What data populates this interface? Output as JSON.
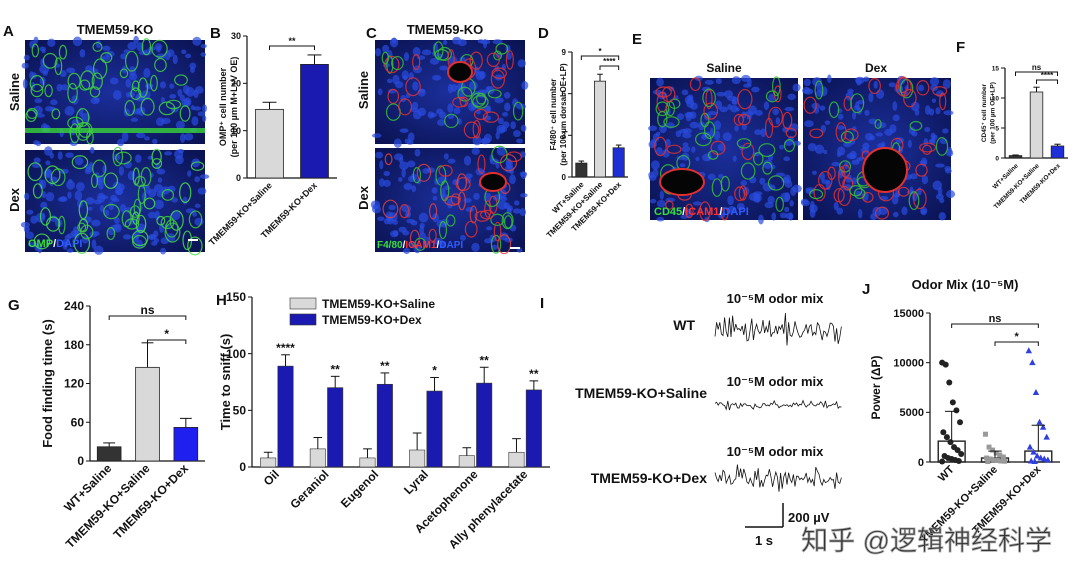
{
  "panels": [
    "A",
    "B",
    "C",
    "D",
    "E",
    "F",
    "G",
    "H",
    "I",
    "J"
  ],
  "panel_a": {
    "title": "TMEM59-KO",
    "rows": [
      "Saline",
      "Dex"
    ],
    "stain": [
      "OMP",
      "/",
      "DAPI"
    ]
  },
  "panel_c": {
    "title": "TMEM59-KO",
    "rows": [
      "Saline",
      "Dex"
    ],
    "stain": [
      "F4/80",
      "/",
      "ICAM1",
      "/",
      "DAPI"
    ]
  },
  "panel_e": {
    "columns": [
      "Saline",
      "Dex"
    ],
    "stain": [
      "CD45",
      "/",
      "ICAM1",
      "/",
      "DAPI"
    ]
  },
  "panel_i": {
    "rows": [
      {
        "label": "WT",
        "stimulus": "10⁻⁵M odor mix"
      },
      {
        "label": "TMEM59-KO+Saline",
        "stimulus": "10⁻⁵M odor mix"
      },
      {
        "label": "TMEM59-KO+Dex",
        "stimulus": "10⁻⁵M odor mix"
      }
    ],
    "scale": [
      "200 µV",
      "1 s"
    ]
  },
  "watermark": "知乎 @逻辑神经科学",
  "chart_data": [
    {
      "type": "bar",
      "ylabel": [
        "OMP⁺ cell number",
        "(per 100 µm M+L+V OE)"
      ],
      "categories": [
        "TMEM59-KO+Saline",
        "TMEM59-KO+Dex"
      ],
      "values": [
        14.5,
        24
      ],
      "errors": [
        1.5,
        2
      ],
      "colors": [
        "#d9d9d9",
        "#1a1ab0"
      ],
      "ylim": [
        0,
        30
      ],
      "yticks": [
        0,
        10,
        20,
        30
      ],
      "significance": [
        "**"
      ]
    },
    {
      "type": "bar",
      "ylabel": [
        "F4/80⁺ cell number",
        "(per 100 µm dorsal OE+LP)"
      ],
      "categories": [
        "WT+Saline",
        "TMEM59-KO+Saline",
        "TMEM59-KO+Dex"
      ],
      "values": [
        1.0,
        6.9,
        2.1
      ],
      "errors": [
        0.15,
        0.5,
        0.2
      ],
      "colors": [
        "#333333",
        "#d9d9d9",
        "#1f2fd8"
      ],
      "ylim": [
        0,
        9
      ],
      "yticks": [
        0,
        3,
        6,
        9
      ],
      "significance": [
        "*",
        "****"
      ]
    },
    {
      "type": "bar",
      "ylabel": [
        "CD45⁺ cell number",
        "(per 100 µm OE+LP)"
      ],
      "categories": [
        "WT+Saline",
        "TMEM59-KO+Saline",
        "TMEM59-KO+Dex"
      ],
      "values": [
        0.4,
        11,
        2
      ],
      "errors": [
        0.1,
        0.8,
        0.3
      ],
      "colors": [
        "#333333",
        "#d9d9d9",
        "#1f2fd8"
      ],
      "ylim": [
        0,
        15
      ],
      "yticks": [
        0,
        5,
        10,
        15
      ],
      "significance": [
        "ns",
        "****"
      ]
    },
    {
      "type": "bar",
      "ylabel": [
        "Food finding time (s)"
      ],
      "categories": [
        "WT+Saline",
        "TMEM59-KO+Saline",
        "TMEM59-KO+Dex"
      ],
      "values": [
        22,
        145,
        52
      ],
      "errors": [
        6,
        38,
        14
      ],
      "colors": [
        "#333333",
        "#d9d9d9",
        "#1f1ff0"
      ],
      "ylim": [
        0,
        240
      ],
      "yticks": [
        0,
        60,
        120,
        180,
        240
      ],
      "significance": [
        "ns",
        "*"
      ]
    },
    {
      "type": "grouped-bar",
      "ylabel": [
        "Time to sniff (s)"
      ],
      "categories": [
        "Oil",
        "Geraniol",
        "Eugenol",
        "Lyral",
        "Acetophenone",
        "Ally phenylacetate"
      ],
      "series": [
        {
          "name": "TMEM59-KO+Saline",
          "color": "#d9d9d9",
          "values": [
            8,
            16,
            8,
            15,
            10,
            13
          ],
          "errors": [
            5,
            10,
            8,
            15,
            7,
            12
          ]
        },
        {
          "name": "TMEM59-KO+Dex",
          "color": "#1a1ab0",
          "values": [
            89,
            70,
            73,
            67,
            74,
            68
          ],
          "errors": [
            10,
            10,
            10,
            12,
            14,
            8
          ]
        }
      ],
      "ylim": [
        0,
        150
      ],
      "yticks": [
        0,
        50,
        100,
        150
      ],
      "significance": [
        "****",
        "**",
        "**",
        "*",
        "**",
        "**"
      ]
    },
    {
      "type": "bar",
      "title": "Odor Mix (10⁻⁵M)",
      "ylabel": [
        "Power (ΔP)"
      ],
      "categories": [
        "WT",
        "TMEM59-KO+Saline",
        "TMEM59-KO+Dex"
      ],
      "values": [
        2100,
        400,
        1100
      ],
      "errors": [
        3000,
        700,
        2600
      ],
      "bar_fill": false,
      "colors": [
        "#222222",
        "#999999",
        "#2f3fe0"
      ],
      "point_shapes": [
        "circle",
        "square",
        "triangle"
      ],
      "points": [
        [
          10000,
          9800,
          8000,
          6000,
          5200,
          4000,
          3000,
          2500,
          2000,
          1500,
          1200,
          800,
          600,
          400,
          300,
          200,
          100,
          50
        ],
        [
          2800,
          1500,
          1200,
          900,
          700,
          500,
          400,
          300,
          200,
          150,
          100,
          80,
          50
        ],
        [
          11200,
          10000,
          7000,
          4000,
          3500,
          2500,
          1500,
          1000,
          600,
          400,
          300,
          200,
          100,
          50
        ]
      ],
      "ylim": [
        0,
        15000
      ],
      "yticks": [
        0,
        5000,
        10000,
        15000
      ],
      "significance": [
        "ns",
        "*"
      ]
    }
  ]
}
